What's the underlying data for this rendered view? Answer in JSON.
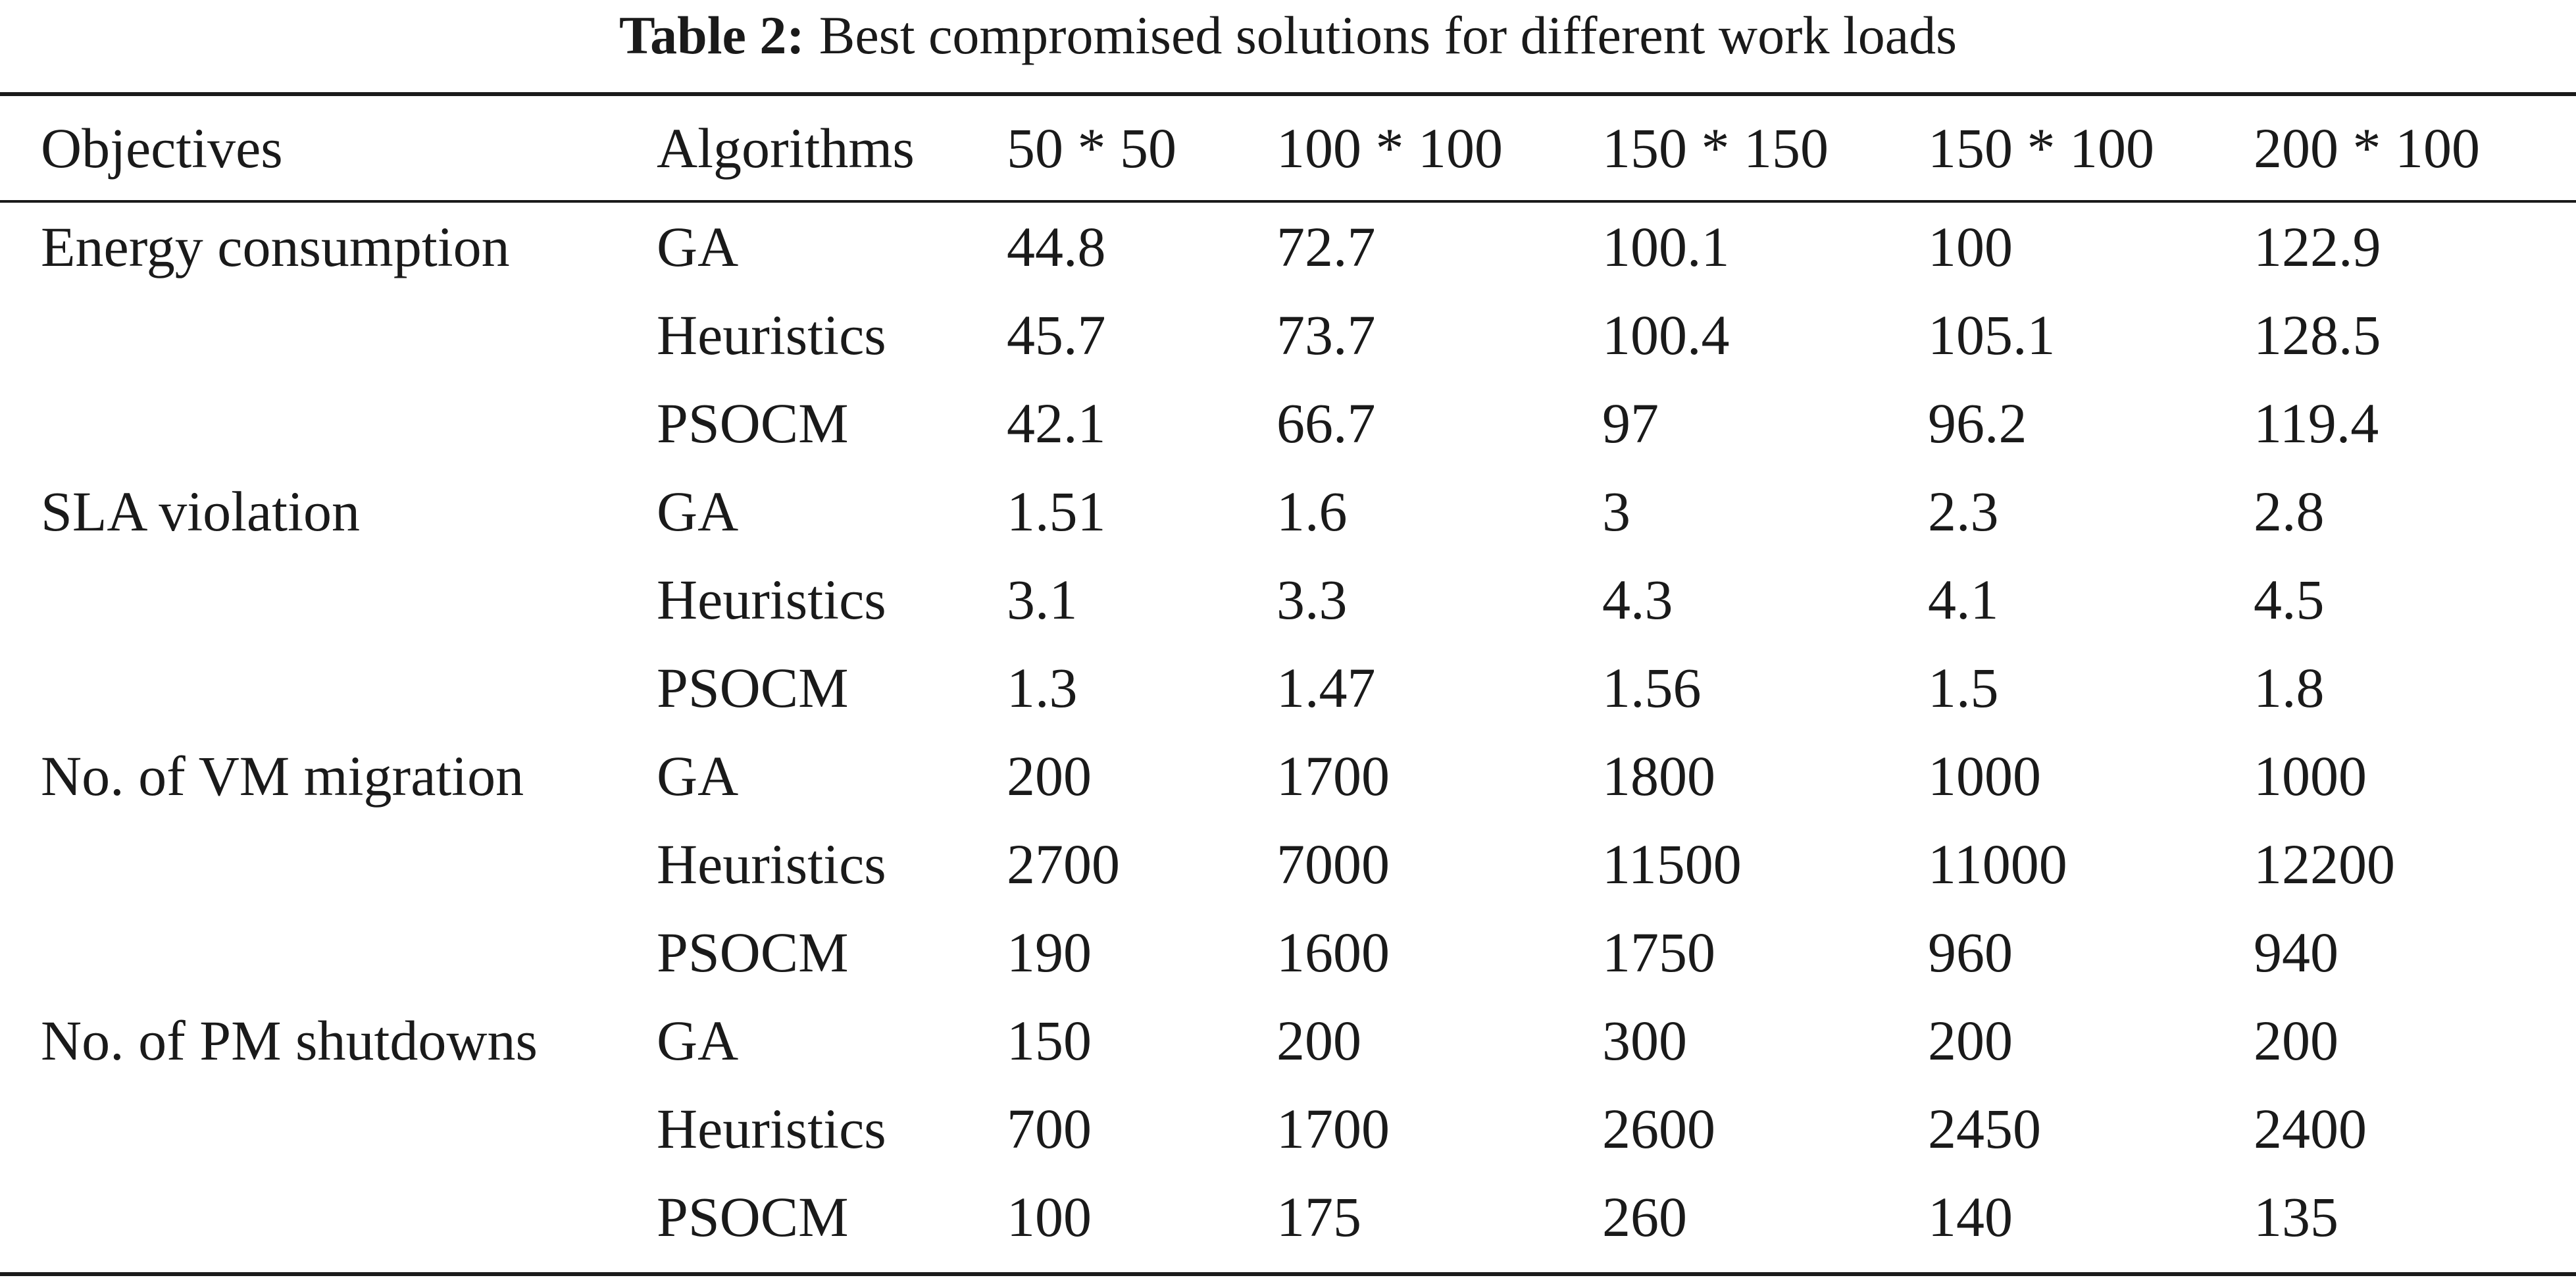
{
  "caption": {
    "label": "Table 2:",
    "text": "Best compromised solutions for different work loads"
  },
  "header": [
    "Objectives",
    "Algorithms",
    "50 * 50",
    "100 * 100",
    "150 * 150",
    "150 * 100",
    "200 * 100"
  ],
  "rows": [
    [
      "Energy consumption",
      "GA",
      "44.8",
      "72.7",
      "100.1",
      "100",
      "122.9"
    ],
    [
      "",
      "Heuristics",
      "45.7",
      "73.7",
      "100.4",
      "105.1",
      "128.5"
    ],
    [
      "",
      "PSOCM",
      "42.1",
      "66.7",
      "97",
      "96.2",
      "119.4"
    ],
    [
      "SLA violation",
      "GA",
      "1.51",
      "1.6",
      "3",
      "2.3",
      "2.8"
    ],
    [
      "",
      "Heuristics",
      "3.1",
      "3.3",
      "4.3",
      "4.1",
      "4.5"
    ],
    [
      "",
      "PSOCM",
      "1.3",
      "1.47",
      "1.56",
      "1.5",
      "1.8"
    ],
    [
      "No. of VM migration",
      "GA",
      "200",
      "1700",
      "1800",
      "1000",
      "1000"
    ],
    [
      "",
      "Heuristics",
      "2700",
      "7000",
      "11500",
      "11000",
      "12200"
    ],
    [
      "",
      "PSOCM",
      "190",
      "1600",
      "1750",
      "960",
      "940"
    ],
    [
      "No. of PM shutdowns",
      "GA",
      "150",
      "200",
      "300",
      "200",
      "200"
    ],
    [
      "",
      "Heuristics",
      "700",
      "1700",
      "2600",
      "2450",
      "2400"
    ],
    [
      "",
      "PSOCM",
      "100",
      "175",
      "260",
      "140",
      "135"
    ]
  ]
}
